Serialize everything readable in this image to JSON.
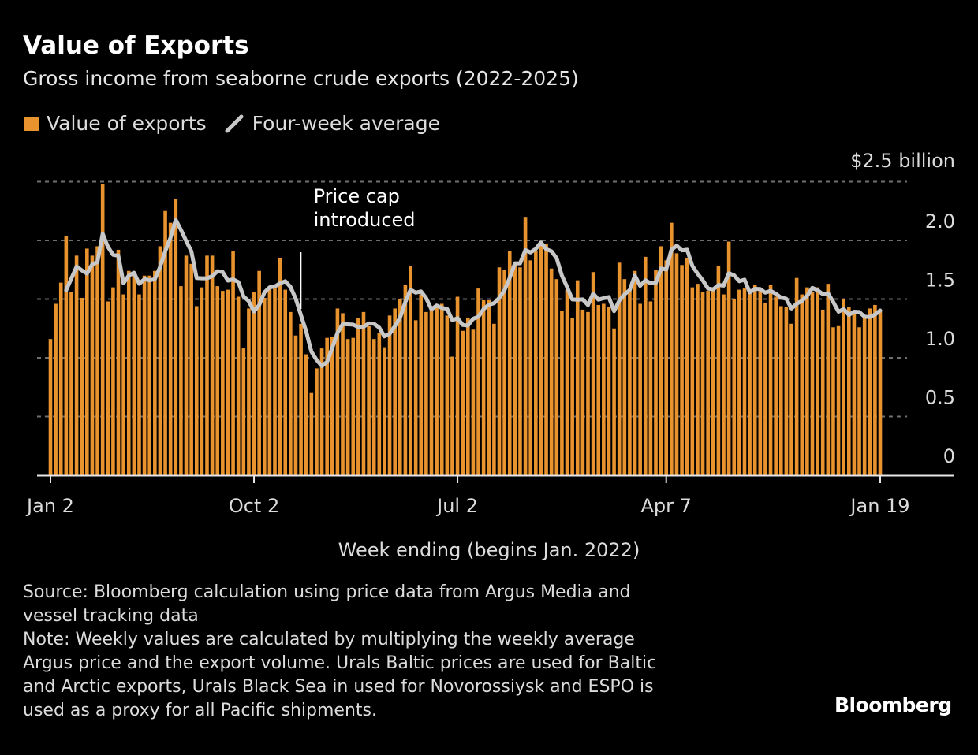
{
  "chart_data": {
    "type": "bar",
    "title": "Value of Exports",
    "subtitle": "Gross income from seaborne crude exports (2022-2025)",
    "legend": [
      {
        "label": "Value of exports",
        "color": "#e8932e",
        "kind": "bar"
      },
      {
        "label": "Four-week average",
        "color": "#c8c8c8",
        "kind": "line"
      }
    ],
    "legend_placement": "top-left",
    "ylabel": "$2.5 billion",
    "xlabel": "Week ending (begins Jan. 2022)",
    "ylim": [
      0,
      2.5
    ],
    "yticks": [
      {
        "value": 0,
        "label": "0"
      },
      {
        "value": 0.5,
        "label": "0.5"
      },
      {
        "value": 1.0,
        "label": "1.0"
      },
      {
        "value": 1.5,
        "label": "1.5"
      },
      {
        "value": 2.0,
        "label": "2.0"
      },
      {
        "value": 2.5,
        "label": ""
      }
    ],
    "xticks": [
      {
        "index": 0,
        "label": "Jan 2"
      },
      {
        "index": 39,
        "label": "Oct 2"
      },
      {
        "index": 78,
        "label": "Jul 2"
      },
      {
        "index": 118,
        "label": "Apr 7"
      },
      {
        "index": 159,
        "label": "Jan 19"
      }
    ],
    "average_window": 4,
    "annotation": {
      "index": 48,
      "line1": "Price cap",
      "line2": "introduced"
    },
    "grid": true,
    "values": [
      1.16,
      1.46,
      1.64,
      2.04,
      1.56,
      1.87,
      1.51,
      1.93,
      1.87,
      1.95,
      2.48,
      1.48,
      1.6,
      1.92,
      1.54,
      1.74,
      1.7,
      1.54,
      1.7,
      1.7,
      1.74,
      1.95,
      2.25,
      2.15,
      2.35,
      1.61,
      1.87,
      1.8,
      1.44,
      1.6,
      1.87,
      1.87,
      1.61,
      1.57,
      1.58,
      1.91,
      1.52,
      1.08,
      1.42,
      1.56,
      1.74,
      1.51,
      1.59,
      1.59,
      1.85,
      1.58,
      1.39,
      1.19,
      1.29,
      1.03,
      0.7,
      0.91,
      1.08,
      1.17,
      1.18,
      1.42,
      1.38,
      1.16,
      1.17,
      1.34,
      1.39,
      1.27,
      1.16,
      1.21,
      1.09,
      1.36,
      1.42,
      1.5,
      1.62,
      1.78,
      1.32,
      1.54,
      1.39,
      1.4,
      1.45,
      1.46,
      1.36,
      1.01,
      1.52,
      1.23,
      1.34,
      1.24,
      1.59,
      1.49,
      1.49,
      1.29,
      1.77,
      1.75,
      1.91,
      1.79,
      1.77,
      2.2,
      1.83,
      1.91,
      1.99,
      1.97,
      1.76,
      1.67,
      1.4,
      1.58,
      1.34,
      1.66,
      1.41,
      1.39,
      1.73,
      1.45,
      1.46,
      1.43,
      1.25,
      1.81,
      1.67,
      1.58,
      1.74,
      1.46,
      1.86,
      1.48,
      1.75,
      1.95,
      1.83,
      2.15,
      1.89,
      1.79,
      1.85,
      1.6,
      1.63,
      1.56,
      1.57,
      1.57,
      1.78,
      1.54,
      1.99,
      1.5,
      1.58,
      1.59,
      1.56,
      1.62,
      1.57,
      1.47,
      1.62,
      1.52,
      1.44,
      1.43,
      1.29,
      1.68,
      1.54,
      1.6,
      1.56,
      1.6,
      1.41,
      1.63,
      1.26,
      1.27,
      1.5,
      1.43,
      1.37,
      1.26,
      1.34,
      1.42,
      1.45,
      1.4
    ]
  },
  "footer": {
    "source_line1": "Source: Bloomberg calculation using price data from Argus Media and",
    "source_line2": "vessel tracking data",
    "note_line1": "Note: Weekly values are calculated by multiplying the weekly average",
    "note_line2": "Argus price and the export volume. Urals Baltic prices are used for Baltic",
    "note_line3": "and Arctic exports, Urals Black Sea in used for Novorossiysk and ESPO is",
    "note_line4": "used as a proxy for all Pacific shipments."
  },
  "brand": "Bloomberg"
}
